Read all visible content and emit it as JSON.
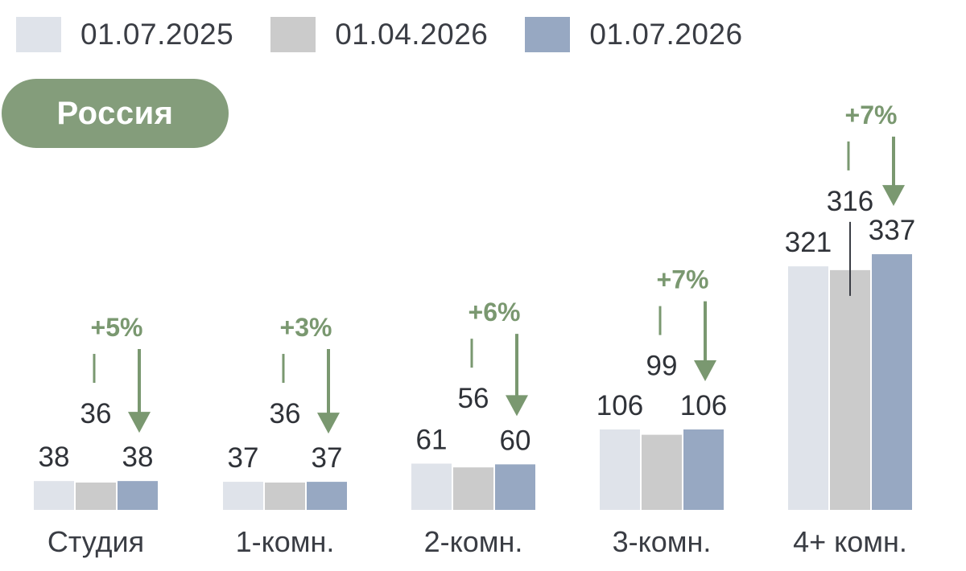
{
  "region": "Россия",
  "colors": {
    "series": [
      "#dfe3ea",
      "#cbcbcb",
      "#97a8c2"
    ],
    "accent": "#7a9870",
    "pill": "#849d7b",
    "text": "#2f3238"
  },
  "chart_data": {
    "type": "bar",
    "categories": [
      "Студия",
      "1-комн.",
      "2-комн.",
      "3-комн.",
      "4+ комн."
    ],
    "series": [
      {
        "name": "01.07.2025",
        "values": [
          38,
          37,
          61,
          106,
          321
        ]
      },
      {
        "name": "01.04.2026",
        "values": [
          36,
          36,
          56,
          99,
          316
        ]
      },
      {
        "name": "01.07.2026",
        "values": [
          38,
          37,
          60,
          106,
          337
        ]
      }
    ],
    "value_labels": [
      [
        "38",
        "37",
        "61",
        "106",
        "321"
      ],
      [
        "36",
        "36",
        "56",
        "99",
        "316"
      ],
      [
        "38",
        "37",
        "60",
        "106",
        "337"
      ]
    ],
    "changes": [
      "+5%",
      "+3%",
      "+6%",
      "+7%",
      "+7%"
    ],
    "legend": "top-left",
    "grid": false
  }
}
